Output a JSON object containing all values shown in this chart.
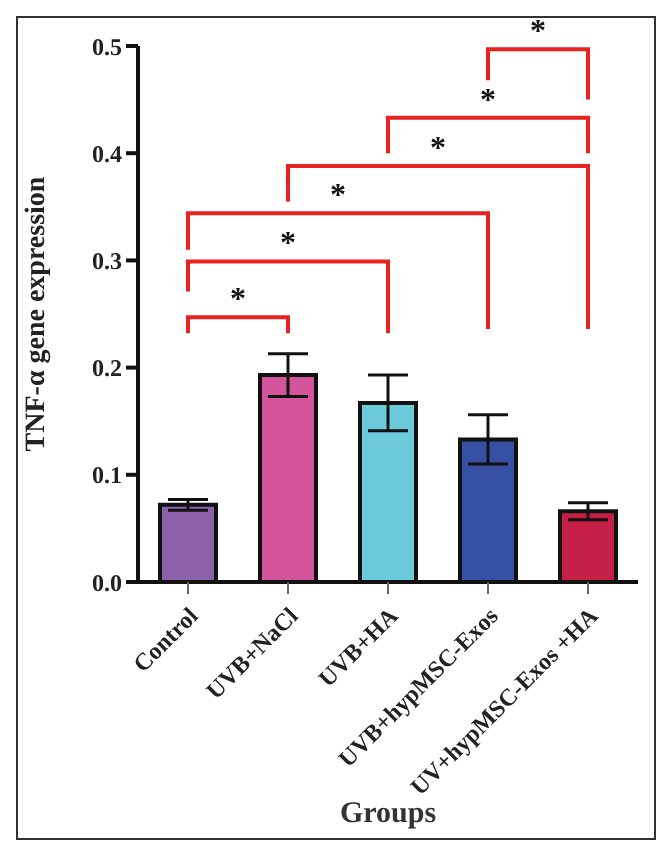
{
  "chart_data": {
    "type": "bar",
    "ylabel": "TNF-α gene expression",
    "xlabel": "Groups",
    "categories": [
      "Control",
      "UVB+NaCl",
      "UVB+HA",
      "UVB+hypMSC-Exos",
      "UV+hypMSC-Exos +HA"
    ],
    "values": [
      0.072,
      0.193,
      0.167,
      0.133,
      0.066
    ],
    "errors": [
      0.005,
      0.02,
      0.026,
      0.023,
      0.008
    ],
    "colors": [
      "#8c62ab",
      "#d3559c",
      "#6ccbdb",
      "#3651a3",
      "#c51f45"
    ],
    "ylim": [
      0,
      0.5
    ],
    "yticks": [
      {
        "value": 0,
        "label": "0.0"
      },
      0.1,
      0.2,
      0.3,
      0.4,
      0.5
    ],
    "grid": false,
    "annotations": [
      "*",
      "*",
      "*",
      "*",
      "*",
      "*"
    ]
  }
}
